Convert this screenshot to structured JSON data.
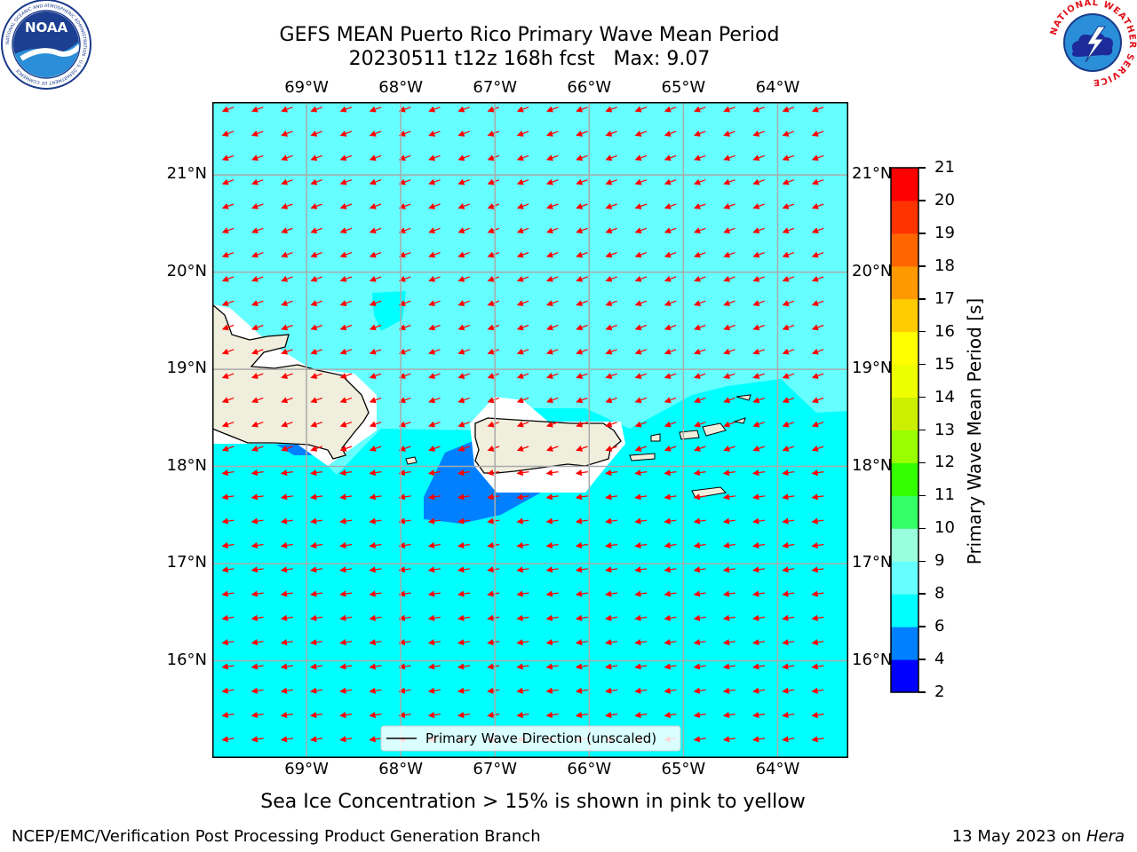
{
  "title": {
    "line1": "GEFS MEAN Puerto Rico Primary Wave Mean Period",
    "line2": "20230511 t12z 168h fcst   Max: 9.07"
  },
  "logos": {
    "left": {
      "icon": "noaa-logo",
      "text": "NOAA",
      "ring_text": "NATIONAL OCEANIC AND ATMOSPHERIC ADMINISTRATION · U.S. DEPARTMENT OF COMMERCE"
    },
    "right": {
      "icon": "nws-logo",
      "ring_text": "NATIONAL WEATHER SERVICE"
    }
  },
  "map": {
    "lon_ticks": [
      "69°W",
      "68°W",
      "67°W",
      "66°W",
      "65°W",
      "64°W"
    ],
    "lat_ticks": [
      "21°N",
      "20°N",
      "19°N",
      "18°N",
      "17°N",
      "16°N"
    ],
    "lon_values": [
      -69,
      -68,
      -67,
      -66,
      -65,
      -64
    ],
    "lat_values": [
      21,
      20,
      19,
      18,
      17,
      16
    ],
    "extent": {
      "lon": [
        -70.0,
        -63.25
      ],
      "lat": [
        15.0,
        21.75
      ]
    },
    "legend_label": "Primary Wave Direction (unscaled)",
    "arrow_color": "#ff0000",
    "land_color": "#f0eedc"
  },
  "colorbar": {
    "label": "Primary Wave Mean Period [s]",
    "ticks": [
      "2",
      "4",
      "6",
      "8",
      "9",
      "10",
      "11",
      "12",
      "13",
      "14",
      "15",
      "16",
      "17",
      "18",
      "19",
      "20",
      "21"
    ],
    "colors": [
      "#0000ff",
      "#0080ff",
      "#00ffff",
      "#66ffff",
      "#99ffdd",
      "#33ff66",
      "#33ff00",
      "#99ff00",
      "#ccee00",
      "#eeff00",
      "#ffff00",
      "#ffcc00",
      "#ff9900",
      "#ff6600",
      "#ff3300",
      "#ff0000"
    ]
  },
  "footer": {
    "note": "Sea Ice Concentration > 15% is shown in pink to yellow",
    "left": "NCEP/EMC/Verification Post Processing Product Generation Branch",
    "right_prefix": "13 May 2023 on ",
    "right_host": "Hera"
  }
}
